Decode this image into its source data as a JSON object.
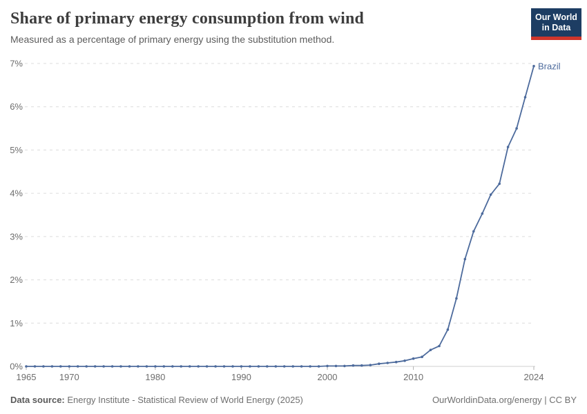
{
  "header": {
    "title": "Share of primary energy consumption from wind",
    "subtitle": "Measured as a percentage of primary energy using the substitution method.",
    "logo": {
      "line1": "Our World",
      "line2": "in Data"
    }
  },
  "footer": {
    "datasource_label": "Data source:",
    "datasource_text": " Energy Institute - Statistical Review of World Energy (2025)",
    "credit": "OurWorldinData.org/energy | CC BY"
  },
  "colors": {
    "line": "#4c6a9c",
    "grid": "#dcdcdc",
    "axis_line": "#cfcfcf",
    "tick_mark": "#b0b0b0",
    "axis_text": "#6d6d6d",
    "logo_navy": "#1d3d63",
    "logo_red": "#cf352b"
  },
  "chart_data": {
    "type": "line",
    "title": "Share of primary energy consumption from wind",
    "subtitle": "Measured as a percentage of primary energy using the substitution method.",
    "xlabel": "",
    "ylabel": "",
    "xlim": [
      1965,
      2024
    ],
    "ylim": [
      0,
      7
    ],
    "grid": true,
    "legend_position": "end-of-line",
    "x_ticks": [
      1965,
      1970,
      1980,
      1990,
      2000,
      2010,
      2024
    ],
    "y_ticks": [
      0,
      1,
      2,
      3,
      4,
      5,
      6,
      7
    ],
    "y_tick_suffix": "%",
    "series": [
      {
        "name": "Brazil",
        "color": "#4c6a9c",
        "years": [
          1965,
          1966,
          1967,
          1968,
          1969,
          1970,
          1971,
          1972,
          1973,
          1974,
          1975,
          1976,
          1977,
          1978,
          1979,
          1980,
          1981,
          1982,
          1983,
          1984,
          1985,
          1986,
          1987,
          1988,
          1989,
          1990,
          1991,
          1992,
          1993,
          1994,
          1995,
          1996,
          1997,
          1998,
          1999,
          2000,
          2001,
          2002,
          2003,
          2004,
          2005,
          2006,
          2007,
          2008,
          2009,
          2010,
          2011,
          2012,
          2013,
          2014,
          2015,
          2016,
          2017,
          2018,
          2019,
          2020,
          2021,
          2022,
          2023,
          2024
        ],
        "values": [
          0,
          0,
          0,
          0,
          0,
          0,
          0,
          0,
          0,
          0,
          0,
          0,
          0,
          0,
          0,
          0,
          0,
          0,
          0,
          0,
          0,
          0,
          0,
          0,
          0,
          0,
          0,
          0,
          0,
          0,
          0,
          0,
          0,
          0,
          0,
          0.01,
          0.01,
          0.01,
          0.02,
          0.02,
          0.03,
          0.06,
          0.08,
          0.1,
          0.13,
          0.18,
          0.22,
          0.38,
          0.47,
          0.85,
          1.57,
          2.48,
          3.12,
          3.53,
          3.97,
          4.22,
          5.07,
          5.5,
          6.22,
          6.94
        ]
      }
    ]
  }
}
